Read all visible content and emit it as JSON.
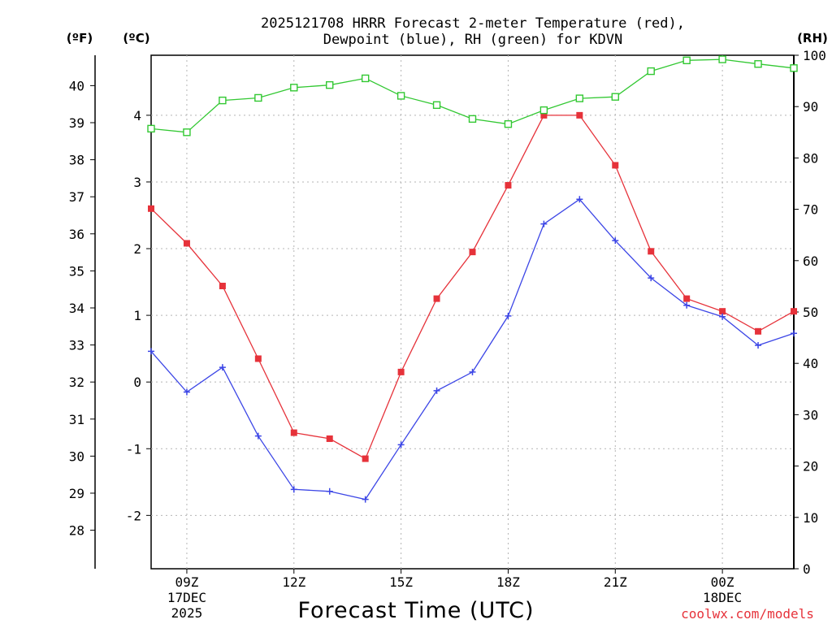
{
  "chart_data": {
    "type": "line",
    "title_line1": "2025121708 HRRR Forecast 2-meter Temperature (red),",
    "title_line2": "Dewpoint (blue), RH (green) for KDVN",
    "xlabel": "Forecast Time (UTC)",
    "credit": "coolwx.com/models",
    "units": {
      "fahrenheit": "(ºF)",
      "celsius": "(ºC)",
      "rh": "(RH)"
    },
    "x": [
      8,
      9,
      10,
      11,
      12,
      13,
      14,
      15,
      16,
      17,
      18,
      19,
      20,
      21,
      22,
      23,
      24,
      25,
      26
    ],
    "xlim": [
      8,
      26
    ],
    "x_ticks": [
      {
        "x": 9,
        "line1": "09Z",
        "line2": "17DEC",
        "line3": "2025"
      },
      {
        "x": 12,
        "line1": "12Z",
        "line2": "",
        "line3": ""
      },
      {
        "x": 15,
        "line1": "15Z",
        "line2": "",
        "line3": ""
      },
      {
        "x": 18,
        "line1": "18Z",
        "line2": "",
        "line3": ""
      },
      {
        "x": 21,
        "line1": "21Z",
        "line2": "",
        "line3": ""
      },
      {
        "x": 24,
        "line1": "00Z",
        "line2": "18DEC",
        "line3": ""
      }
    ],
    "ylim_c": [
      -2.8,
      4.9
    ],
    "yticks_c": [
      "-2",
      "-1",
      "0",
      "1",
      "2",
      "3",
      "4"
    ],
    "yticks_f": [
      "28",
      "29",
      "30",
      "31",
      "32",
      "33",
      "34",
      "35",
      "36",
      "37",
      "38",
      "39",
      "40"
    ],
    "ylim_rh": [
      0,
      100
    ],
    "yticks_rh": [
      "0",
      "10",
      "20",
      "30",
      "40",
      "50",
      "60",
      "70",
      "80",
      "90",
      "100"
    ],
    "series": [
      {
        "name": "Temperature",
        "unit": "C",
        "color": "#e6323a",
        "marker": "filled-square",
        "values": [
          2.6,
          2.08,
          1.44,
          0.35,
          -0.76,
          -0.85,
          -1.15,
          0.15,
          1.25,
          1.95,
          2.95,
          4.0,
          4.0,
          3.25,
          1.96,
          1.25,
          1.06,
          0.76,
          1.06
        ]
      },
      {
        "name": "Dewpoint",
        "unit": "C",
        "color": "#3c46e6",
        "marker": "plus",
        "values": [
          0.46,
          -0.15,
          0.22,
          -0.81,
          -1.61,
          -1.64,
          -1.76,
          -0.94,
          -0.13,
          0.15,
          0.99,
          2.37,
          2.74,
          2.12,
          1.56,
          1.15,
          0.98,
          0.55,
          0.73
        ]
      },
      {
        "name": "RH",
        "unit": "%",
        "color": "#32c832",
        "marker": "open-square",
        "values": [
          85.7,
          85.0,
          91.2,
          91.7,
          93.7,
          94.2,
          95.5,
          92.1,
          90.3,
          87.6,
          86.6,
          89.3,
          91.6,
          91.9,
          96.9,
          99.0,
          99.2,
          98.3,
          97.5
        ]
      }
    ]
  }
}
